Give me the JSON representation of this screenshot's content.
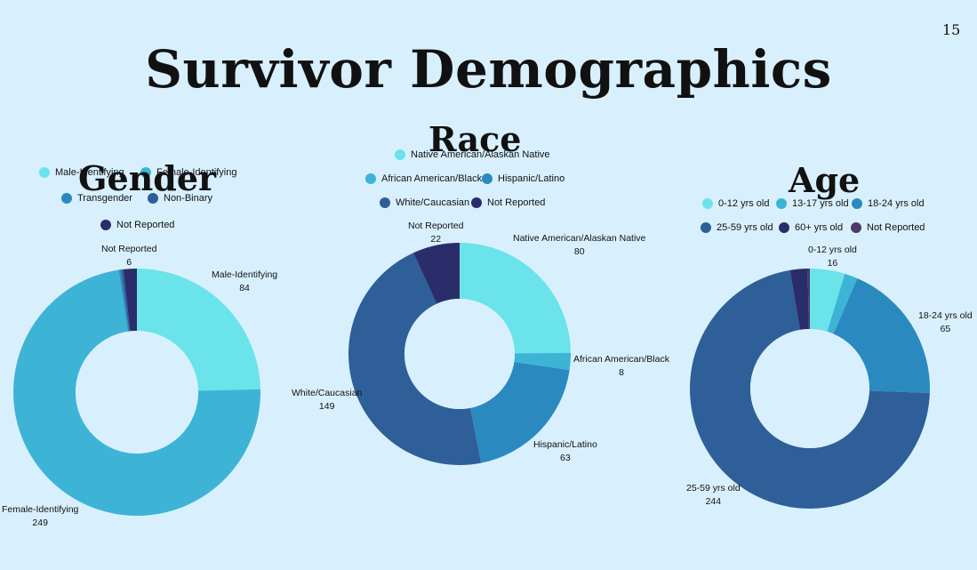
{
  "page": {
    "number": "15",
    "title": "Survivor Demographics"
  },
  "colors": {
    "cyan": "#6ae3ea",
    "light_blue": "#3db4d6",
    "mid_blue": "#2a8abf",
    "steel_blue": "#2e5f98",
    "navy": "#2b2d6b",
    "plum": "#4d3a66"
  },
  "chart_data": [
    {
      "type": "pie",
      "title": "Gender",
      "categories": [
        "Male-Identifying",
        "Female-Identifying",
        "Transgender",
        "Non-Binary",
        "Not Reported"
      ],
      "values": [
        84,
        249,
        1,
        1,
        6
      ],
      "colors": [
        "#6ae3ea",
        "#3db4d6",
        "#2a8abf",
        "#2e5f98",
        "#2b2d6b"
      ],
      "data_labels": [
        {
          "name": "Male-Identifying",
          "value": "84"
        },
        {
          "name": "Female-Identifying",
          "value": "249"
        },
        {
          "name": "Not Reported",
          "value": "6"
        }
      ],
      "legend": "top"
    },
    {
      "type": "pie",
      "title": "Race",
      "categories": [
        "Native American/Alaskan Native",
        "African American/Black",
        "Hispanic/Latino",
        "White/Caucasian",
        "Not Reported"
      ],
      "values": [
        80,
        8,
        63,
        149,
        22
      ],
      "colors": [
        "#6ae3ea",
        "#3db4d6",
        "#2a8abf",
        "#2e5f98",
        "#2b2d6b"
      ],
      "data_labels": [
        {
          "name": "Native American/Alaskan Native",
          "value": "80"
        },
        {
          "name": "African American/Black",
          "value": "8"
        },
        {
          "name": "Hispanic/Latino",
          "value": "63"
        },
        {
          "name": "White/Caucasian",
          "value": "149"
        },
        {
          "name": "Not Reported",
          "value": "22"
        }
      ],
      "legend": "top"
    },
    {
      "type": "pie",
      "title": "Age",
      "categories": [
        "0-12 yrs old",
        "13-17 yrs old",
        "18-24 yrs old",
        "25-59 yrs old",
        "60+ yrs old",
        "Not Reported"
      ],
      "values": [
        16,
        6,
        65,
        244,
        8,
        1
      ],
      "colors": [
        "#6ae3ea",
        "#3db4d6",
        "#2a8abf",
        "#2e5f98",
        "#2b2d6b",
        "#4d3a66"
      ],
      "data_labels": [
        {
          "name": "0-12 yrs old",
          "value": "16"
        },
        {
          "name": "18-24 yrs old",
          "value": "65"
        },
        {
          "name": "25-59 yrs old",
          "value": "244"
        }
      ],
      "legend": "top"
    }
  ]
}
